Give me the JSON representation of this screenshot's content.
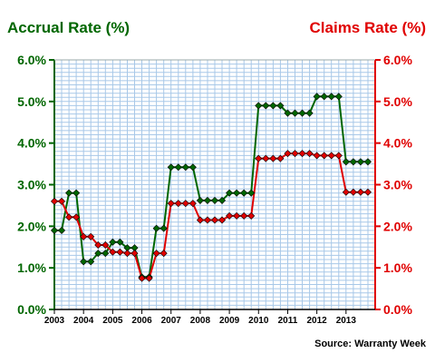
{
  "chart_data": {
    "type": "line",
    "left_axis_label": "Accrual Rate (%)",
    "right_axis_label": "Claims Rate (%)",
    "source": "Source: Warranty Week",
    "x_tick_labels": [
      "2003",
      "2004",
      "2005",
      "2006",
      "2007",
      "2008",
      "2009",
      "2010",
      "2011",
      "2012",
      "2013"
    ],
    "y_tick_labels": [
      "0.0%",
      "1.0%",
      "2.0%",
      "3.0%",
      "4.0%",
      "5.0%",
      "6.0%"
    ],
    "ylim": [
      0,
      6
    ],
    "xlim": [
      2003,
      2014.0
    ],
    "grid": true,
    "colors": {
      "accrual": "#006600",
      "claims": "#e00000",
      "grid": "#a8c8e8"
    },
    "series": [
      {
        "key": "accrual",
        "x": [
          2003.0,
          2003.25,
          2003.5,
          2003.75,
          2004.0,
          2004.25,
          2004.5,
          2004.75,
          2005.0,
          2005.25,
          2005.5,
          2005.75,
          2006.0,
          2006.25,
          2006.5,
          2006.75,
          2007.0,
          2007.25,
          2007.5,
          2007.75,
          2008.0,
          2008.25,
          2008.5,
          2008.75,
          2009.0,
          2009.25,
          2009.5,
          2009.75,
          2010.0,
          2010.25,
          2010.5,
          2010.75,
          2011.0,
          2011.25,
          2011.5,
          2011.75,
          2012.0,
          2012.25,
          2012.5,
          2012.75,
          2013.0,
          2013.25,
          2013.5,
          2013.75
        ],
        "values": [
          1.9,
          1.9,
          2.8,
          2.8,
          1.15,
          1.15,
          1.35,
          1.35,
          1.62,
          1.62,
          1.48,
          1.48,
          0.78,
          0.78,
          1.95,
          1.95,
          3.42,
          3.42,
          3.42,
          3.42,
          2.62,
          2.62,
          2.62,
          2.62,
          2.8,
          2.8,
          2.8,
          2.8,
          4.9,
          4.9,
          4.9,
          4.9,
          4.72,
          4.72,
          4.72,
          4.72,
          5.12,
          5.12,
          5.12,
          5.12,
          3.55,
          3.55,
          3.55,
          3.55
        ]
      },
      {
        "key": "claims",
        "x": [
          2003.0,
          2003.25,
          2003.5,
          2003.75,
          2004.0,
          2004.25,
          2004.5,
          2004.75,
          2005.0,
          2005.25,
          2005.5,
          2005.75,
          2006.0,
          2006.25,
          2006.5,
          2006.75,
          2007.0,
          2007.25,
          2007.5,
          2007.75,
          2008.0,
          2008.25,
          2008.5,
          2008.75,
          2009.0,
          2009.25,
          2009.5,
          2009.75,
          2010.0,
          2010.25,
          2010.5,
          2010.75,
          2011.0,
          2011.25,
          2011.5,
          2011.75,
          2012.0,
          2012.25,
          2012.5,
          2012.75,
          2013.0,
          2013.25,
          2013.5,
          2013.75
        ],
        "values": [
          2.6,
          2.6,
          2.22,
          2.22,
          1.75,
          1.75,
          1.55,
          1.55,
          1.38,
          1.38,
          1.35,
          1.35,
          0.75,
          0.75,
          1.35,
          1.35,
          2.55,
          2.55,
          2.55,
          2.55,
          2.15,
          2.15,
          2.15,
          2.15,
          2.25,
          2.25,
          2.25,
          2.25,
          3.63,
          3.63,
          3.63,
          3.63,
          3.75,
          3.75,
          3.75,
          3.75,
          3.7,
          3.7,
          3.7,
          3.7,
          2.82,
          2.82,
          2.82,
          2.82
        ]
      }
    ]
  }
}
